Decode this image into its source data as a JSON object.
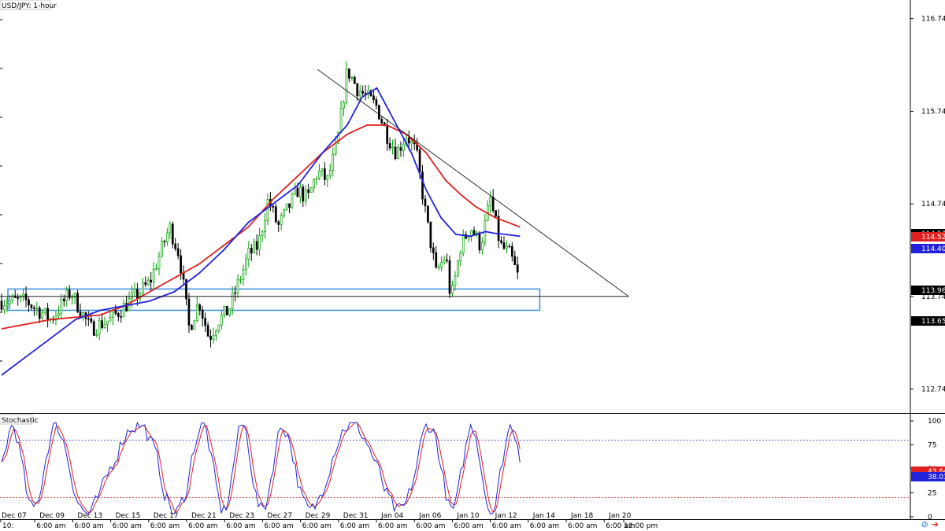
{
  "chart_title": "USD/JPY: 1-hour",
  "indicator_title": "Stochastic",
  "colors": {
    "bull": "#00a000",
    "bear": "#000000",
    "ma_fast": "#2222dd",
    "ma_slow": "#e02020",
    "stoch_k": "#2222dd",
    "stoch_d": "#e02020",
    "zone": "#3a8fe0",
    "level80": "#3333cc",
    "level20": "#e02020"
  },
  "icons": {
    "link": "link-icon",
    "arrow": "arrow-right-icon"
  },
  "chart_data": {
    "type": "candlestick",
    "title": "USD/JPY: 1-hour",
    "ylim": [
      112.5,
      116.95
    ],
    "y_ticks": [
      "116.749",
      "115.749",
      "114.749",
      "113.749",
      "112.749"
    ],
    "price_tags": [
      {
        "text": "114.577",
        "style": "black"
      },
      {
        "text": "114.529",
        "style": "red"
      },
      {
        "text": "114.401",
        "style": "blue"
      },
      {
        "text": "113.968",
        "style": "black"
      },
      {
        "text": "113.650",
        "style": "black"
      }
    ],
    "x_date_labels": [
      "Dec 07",
      "Dec 09",
      "Dec 13",
      "Dec 15",
      "Dec 17",
      "Dec 21",
      "Dec 23",
      "Dec 27",
      "Dec 29",
      "Dec 31",
      "Jan 04",
      "Jan 06",
      "Jan 10",
      "Jan 12",
      "Jan 14",
      "Jan 18",
      "Jan 20"
    ],
    "x_time_labels": [
      "10:",
      "6:00 am",
      "6:00 am",
      "6:00 am",
      "6:00 am",
      "6:00 am",
      "6:00 am",
      "6:00 am",
      "6:00 am",
      "6:00 am",
      "6:00 am",
      "6:00 am",
      "6:00 am",
      "6:00 am",
      "6:00 am",
      "6:00 am",
      "6:00 am",
      "12:00 pm"
    ],
    "price_path": [
      [
        0,
        113.7
      ],
      [
        5,
        113.7
      ],
      [
        10,
        113.5
      ],
      [
        14,
        113.8
      ],
      [
        18,
        113.4
      ],
      [
        22,
        113.5
      ],
      [
        26,
        113.7
      ],
      [
        30,
        113.9
      ],
      [
        34,
        114.5
      ],
      [
        36,
        114.2
      ],
      [
        38,
        113.4
      ],
      [
        40,
        113.7
      ],
      [
        42,
        113.3
      ],
      [
        44,
        113.5
      ],
      [
        46,
        113.6
      ],
      [
        48,
        113.9
      ],
      [
        50,
        114.2
      ],
      [
        52,
        114.3
      ],
      [
        54,
        114.8
      ],
      [
        56,
        114.5
      ],
      [
        58,
        114.7
      ],
      [
        60,
        114.9
      ],
      [
        62,
        114.8
      ],
      [
        64,
        115.1
      ],
      [
        66,
        115.0
      ],
      [
        68,
        115.4
      ],
      [
        70,
        116.2
      ],
      [
        72,
        116.0
      ],
      [
        74,
        115.9
      ],
      [
        76,
        115.8
      ],
      [
        78,
        115.5
      ],
      [
        80,
        115.3
      ],
      [
        82,
        115.5
      ],
      [
        84,
        115.3
      ],
      [
        86,
        114.6
      ],
      [
        88,
        114.0
      ],
      [
        90,
        114.2
      ],
      [
        91,
        113.7
      ],
      [
        93,
        114.3
      ],
      [
        95,
        114.5
      ],
      [
        97,
        114.3
      ],
      [
        99,
        114.8
      ],
      [
        101,
        114.3
      ],
      [
        103,
        114.2
      ],
      [
        105,
        113.9
      ]
    ],
    "ma_fast_path": [
      [
        0,
        112.9
      ],
      [
        5,
        113.1
      ],
      [
        10,
        113.3
      ],
      [
        15,
        113.5
      ],
      [
        20,
        113.6
      ],
      [
        25,
        113.65
      ],
      [
        30,
        113.7
      ],
      [
        35,
        113.8
      ],
      [
        40,
        114.0
      ],
      [
        45,
        114.25
      ],
      [
        50,
        114.55
      ],
      [
        55,
        114.75
      ],
      [
        60,
        114.95
      ],
      [
        65,
        115.3
      ],
      [
        70,
        115.6
      ],
      [
        73,
        115.9
      ],
      [
        76,
        116.0
      ],
      [
        78,
        115.8
      ],
      [
        80,
        115.6
      ],
      [
        83,
        115.3
      ],
      [
        86,
        114.9
      ],
      [
        89,
        114.6
      ],
      [
        92,
        114.42
      ],
      [
        95,
        114.4
      ],
      [
        98,
        114.45
      ],
      [
        100,
        114.43
      ],
      [
        102,
        114.42
      ],
      [
        105,
        114.4
      ]
    ],
    "ma_slow_path": [
      [
        0,
        113.4
      ],
      [
        10,
        113.5
      ],
      [
        20,
        113.55
      ],
      [
        25,
        113.65
      ],
      [
        30,
        113.8
      ],
      [
        35,
        113.95
      ],
      [
        40,
        114.1
      ],
      [
        45,
        114.3
      ],
      [
        50,
        114.5
      ],
      [
        55,
        114.8
      ],
      [
        60,
        115.05
      ],
      [
        65,
        115.3
      ],
      [
        70,
        115.5
      ],
      [
        74,
        115.6
      ],
      [
        78,
        115.6
      ],
      [
        82,
        115.5
      ],
      [
        86,
        115.3
      ],
      [
        90,
        115.0
      ],
      [
        93,
        114.85
      ],
      [
        96,
        114.72
      ],
      [
        100,
        114.6
      ],
      [
        105,
        114.5
      ]
    ],
    "trendline": {
      "x1": 64,
      "y1": 116.2,
      "x2": 127,
      "y2": 113.75
    },
    "support_line_y": 113.75,
    "support_zone": {
      "x1": 0,
      "x2": 109,
      "y_top": 113.83,
      "y_bottom": 113.6
    },
    "stochastic": {
      "ylim": [
        0,
        100
      ],
      "levels": [
        80,
        20
      ],
      "y_ticks": [
        "100",
        "75",
        "50",
        "25",
        "0"
      ],
      "tags": [
        {
          "text": "43.64",
          "style": "red"
        },
        {
          "text": "38.03",
          "style": "blue"
        }
      ]
    }
  }
}
